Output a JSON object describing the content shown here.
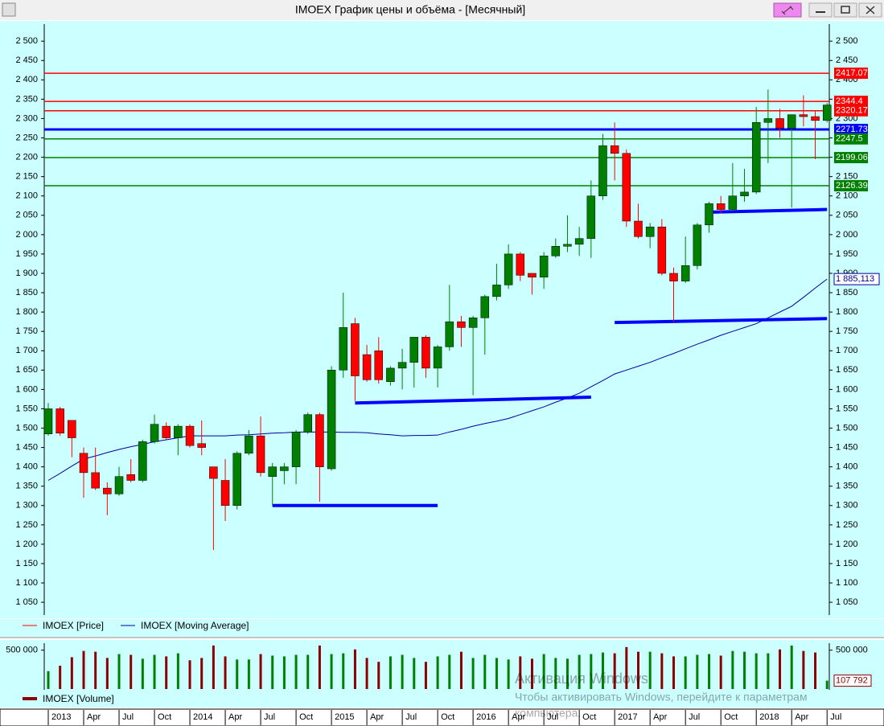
{
  "chart_data": {
    "type": "candlestick",
    "title": "IMOEX График цены и объёма - [Месячный]",
    "categories": [
      "2013",
      null,
      null,
      "Apr",
      null,
      null,
      "Jul",
      null,
      null,
      "Oct",
      null,
      null,
      "2014",
      null,
      null,
      "Apr",
      null,
      null,
      "Jul",
      null,
      null,
      "Oct",
      null,
      null,
      "2015",
      null,
      null,
      "Apr",
      null,
      null,
      "Jul",
      null,
      null,
      "Oct",
      null,
      null,
      "2016",
      null,
      null,
      "Apr",
      null,
      null,
      "Jul",
      null,
      null,
      "Oct",
      null,
      null,
      "2017",
      null,
      null,
      "Apr",
      null,
      null,
      "Jul",
      null,
      null,
      "Oct",
      null,
      null,
      "2018",
      null,
      null,
      "Apr",
      null,
      null,
      "Jul"
    ],
    "series": [
      {
        "name": "IMOEX [Price]",
        "color": "#ff0000",
        "up_color": "#008000",
        "down_color": "#ff0000",
        "open": [
          1485,
          1550,
          1520,
          1435,
          1385,
          1345,
          1330,
          1380,
          1365,
          1465,
          1505,
          1475,
          1505,
          1460,
          1400,
          1365,
          1300,
          1435,
          1480,
          1375,
          1390,
          1400,
          1490,
          1535,
          1395,
          1650,
          1770,
          1690,
          1700,
          1620,
          1655,
          1670,
          1735,
          1655,
          1710,
          1775,
          1760,
          1785,
          1840,
          1870,
          1950,
          1900,
          1890,
          1945,
          1970,
          1975,
          1990,
          2100,
          2230,
          2210,
          2035,
          1995,
          2020,
          1900,
          1880,
          1920,
          2025,
          2080,
          2065,
          2100,
          2110,
          2290,
          2300,
          2275,
          2310,
          2305,
          2295
        ],
        "high": [
          1565,
          1555,
          1520,
          1450,
          1450,
          1360,
          1400,
          1420,
          1470,
          1535,
          1515,
          1510,
          1510,
          1520,
          1400,
          1420,
          1440,
          1495,
          1530,
          1410,
          1410,
          1495,
          1540,
          1540,
          1660,
          1850,
          1785,
          1715,
          1735,
          1660,
          1705,
          1735,
          1740,
          1715,
          1870,
          1790,
          1790,
          1845,
          1925,
          1975,
          1955,
          1900,
          1955,
          1990,
          2050,
          2020,
          2140,
          2260,
          2290,
          2220,
          2080,
          2030,
          2040,
          1915,
          1995,
          2030,
          2085,
          2100,
          2185,
          2170,
          2330,
          2375,
          2325,
          2310,
          2360,
          2320,
          2340
        ],
        "low": [
          1480,
          1480,
          1425,
          1320,
          1340,
          1275,
          1325,
          1360,
          1360,
          1460,
          1470,
          1430,
          1450,
          1430,
          1185,
          1260,
          1290,
          1430,
          1375,
          1300,
          1355,
          1355,
          1485,
          1310,
          1390,
          1630,
          1570,
          1620,
          1615,
          1610,
          1600,
          1605,
          1630,
          1605,
          1700,
          1710,
          1585,
          1690,
          1830,
          1860,
          1880,
          1845,
          1860,
          1940,
          1955,
          1945,
          1940,
          2090,
          2140,
          2020,
          1990,
          1965,
          1895,
          1775,
          1875,
          1910,
          2005,
          2055,
          2060,
          2085,
          2105,
          2185,
          2250,
          2070,
          2280,
          2195,
          2290
        ],
        "close": [
          1550,
          1487,
          1475,
          1385,
          1345,
          1330,
          1375,
          1365,
          1465,
          1510,
          1475,
          1505,
          1455,
          1450,
          1370,
          1300,
          1435,
          1480,
          1385,
          1400,
          1400,
          1490,
          1535,
          1400,
          1650,
          1760,
          1635,
          1625,
          1625,
          1655,
          1670,
          1735,
          1655,
          1710,
          1775,
          1760,
          1785,
          1840,
          1870,
          1950,
          1895,
          1890,
          1945,
          1970,
          1975,
          1990,
          2100,
          2230,
          2210,
          2035,
          1995,
          2020,
          1900,
          1880,
          1920,
          2025,
          2080,
          2065,
          2100,
          2110,
          2290,
          2300,
          2275,
          2310,
          2305,
          2295,
          2335
        ]
      },
      {
        "name": "IMOEX [Moving Average]",
        "color": "#0000a0",
        "values": [
          1365,
          1383,
          1402,
          1420,
          1428,
          1437,
          1445,
          1452,
          1458,
          1465,
          1470,
          1475,
          1480,
          1480,
          1480,
          1480,
          1482,
          1483,
          1485,
          1487,
          1488,
          1490,
          1490,
          1490,
          1490,
          1489,
          1489,
          1488,
          1485,
          1483,
          1480,
          1481,
          1481,
          1482,
          1490,
          1497,
          1505,
          1512,
          1518,
          1525,
          1535,
          1545,
          1555,
          1567,
          1578,
          1590,
          1607,
          1623,
          1640,
          1650,
          1660,
          1670,
          1682,
          1693,
          1705,
          1717,
          1728,
          1740,
          1750,
          1760,
          1770,
          1785,
          1800,
          1815,
          1838,
          1862,
          1885.113
        ],
        "last_label": "1 885,113"
      }
    ],
    "ylim": [
      1017,
      2544
    ],
    "yticks": [
      {
        "value": 1050,
        "label": "1 050"
      },
      {
        "value": 1100,
        "label": "1 100"
      },
      {
        "value": 1150,
        "label": "1 150"
      },
      {
        "value": 1200,
        "label": "1 200"
      },
      {
        "value": 1250,
        "label": "1 250"
      },
      {
        "value": 1300,
        "label": "1 300"
      },
      {
        "value": 1350,
        "label": "1 350"
      },
      {
        "value": 1400,
        "label": "1 400"
      },
      {
        "value": 1450,
        "label": "1 450"
      },
      {
        "value": 1500,
        "label": "1 500"
      },
      {
        "value": 1550,
        "label": "1 550"
      },
      {
        "value": 1600,
        "label": "1 600"
      },
      {
        "value": 1650,
        "label": "1 650"
      },
      {
        "value": 1700,
        "label": "1 700"
      },
      {
        "value": 1750,
        "label": "1 750"
      },
      {
        "value": 1800,
        "label": "1 800"
      },
      {
        "value": 1850,
        "label": "1 850"
      },
      {
        "value": 1900,
        "label": "1 900"
      },
      {
        "value": 1950,
        "label": "1 950"
      },
      {
        "value": 2000,
        "label": "2 000"
      },
      {
        "value": 2050,
        "label": "2 050"
      },
      {
        "value": 2100,
        "label": "2 100"
      },
      {
        "value": 2150,
        "label": "2 150"
      },
      {
        "value": 2200,
        "label": "2 200"
      },
      {
        "value": 2250,
        "label": "2 250"
      },
      {
        "value": 2300,
        "label": "2 300"
      },
      {
        "value": 2350,
        "label": "2 350"
      },
      {
        "value": 2400,
        "label": "2 400"
      },
      {
        "value": 2450,
        "label": "2 450"
      },
      {
        "value": 2500,
        "label": "2 500"
      }
    ],
    "levels": [
      {
        "value": 2417.07,
        "color": "#ff0000"
      },
      {
        "value": 2344.4,
        "color": "#ff0000"
      },
      {
        "value": 2320.17,
        "color": "#ff0000"
      },
      {
        "value": 2271.73,
        "color": "#0000ff"
      },
      {
        "value": 2247.5,
        "color": "#008000"
      },
      {
        "value": 2199.06,
        "color": "#008000"
      },
      {
        "value": 2126.39,
        "color": "#008000"
      }
    ],
    "trendlines": [
      {
        "start": 19,
        "end": 33,
        "from": 1300,
        "to": 1300
      },
      {
        "start": 26,
        "end": 46,
        "from": 1565,
        "to": 1580
      },
      {
        "start": 48,
        "end": 66,
        "from": 1773,
        "to": 1783
      },
      {
        "start": 56,
        "end": 66,
        "from": 2058,
        "to": 2065
      }
    ],
    "trendline_color": "#0000ff",
    "volume": {
      "name": "IMOEX [Volume]",
      "color": "#8b0000",
      "values": [
        230000,
        300000,
        410000,
        490000,
        480000,
        400000,
        450000,
        440000,
        390000,
        440000,
        420000,
        460000,
        370000,
        400000,
        560000,
        420000,
        380000,
        380000,
        450000,
        430000,
        420000,
        440000,
        440000,
        560000,
        450000,
        460000,
        510000,
        400000,
        350000,
        420000,
        440000,
        400000,
        350000,
        420000,
        440000,
        480000,
        400000,
        440000,
        400000,
        380000,
        420000,
        390000,
        450000,
        400000,
        390000,
        440000,
        450000,
        470000,
        460000,
        540000,
        480000,
        480000,
        460000,
        420000,
        420000,
        440000,
        450000,
        430000,
        490000,
        480000,
        460000,
        460000,
        510000,
        560000,
        490000,
        470000,
        107792
      ],
      "last_label": "107 792",
      "ylim": [
        0,
        590000
      ],
      "yticks": [
        {
          "value": 500000,
          "label": "500 000"
        }
      ]
    },
    "watermark": [
      "Активация Windows",
      "Чтобы активировать Windows, перейдите к параметрам",
      "компьютера."
    ]
  }
}
